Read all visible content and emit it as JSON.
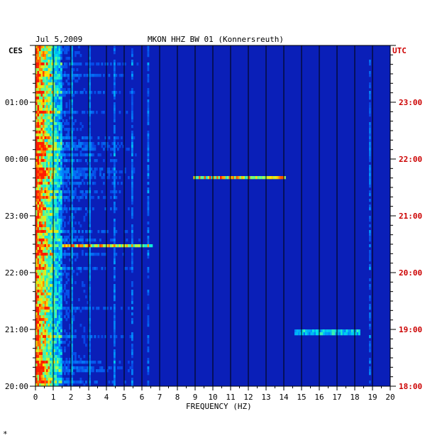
{
  "chart_data": {
    "type": "heatmap",
    "title": "MKON HHZ BW 01 (Konnersreuth)",
    "date": "Jul 5,2009",
    "xlabel": "FREQUENCY (HZ)",
    "left_timezone": "CES",
    "right_timezone": "UTC",
    "x_ticks": [
      "0",
      "1",
      "2",
      "3",
      "4",
      "5",
      "6",
      "7",
      "8",
      "9",
      "10",
      "11",
      "12",
      "13",
      "14",
      "15",
      "16",
      "17",
      "18",
      "19",
      "20"
    ],
    "xlim": [
      0,
      20
    ],
    "left_time_labels": [
      "01:00",
      "00:00",
      "23:00",
      "22:00",
      "21:00",
      "20:00"
    ],
    "right_time_labels": [
      "23:00",
      "22:00",
      "21:00",
      "20:00",
      "19:00",
      "18:00"
    ],
    "time_hours": [
      5,
      4,
      3,
      2,
      1,
      0
    ],
    "ylim_hours": [
      0,
      6
    ],
    "colors": {
      "background": "#0a1fb8",
      "low": "#0010a0",
      "mid": "#00c8ff",
      "high": "#ffe000",
      "peak": "#ff2000",
      "utc_label": "#cc0000"
    },
    "events": [
      {
        "t_hours": 3.7,
        "f_start": 8.8,
        "f_end": 14.0,
        "intensity": 0.7
      },
      {
        "t_hours": 2.5,
        "f_start": 1.5,
        "f_end": 6.5,
        "intensity": 0.6
      },
      {
        "t_hours": 0.98,
        "f_start": 14.5,
        "f_end": 18.2,
        "intensity": 0.45
      }
    ],
    "persistent_lines_hz": [
      2.0,
      3.0,
      4.4,
      5.4,
      6.3,
      18.8
    ]
  },
  "footnote": "*"
}
